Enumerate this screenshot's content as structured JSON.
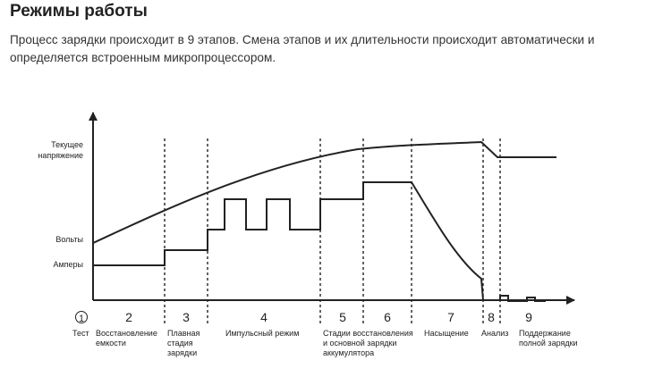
{
  "header": {
    "title": "Режимы работы",
    "description": "Процесс зарядки происходит в 9 этапов. Смена этапов и их длительности происходит автоматически и определяется встроенным микропроцессором."
  },
  "diagram": {
    "y_labels": {
      "voltage_current": [
        "Текущее",
        "напряжение"
      ],
      "volts": "Вольты",
      "amps": "Амперы"
    },
    "stages": [
      {
        "num": "1",
        "label": [
          "Тест"
        ]
      },
      {
        "num": "2",
        "label": [
          "Восстановление",
          "емкости"
        ]
      },
      {
        "num": "3",
        "label": [
          "Плавная",
          "стадия",
          "зарядки"
        ]
      },
      {
        "num": "4",
        "label": [
          "Импульсный режим"
        ]
      },
      {
        "num": "5",
        "label": [
          "Стадии восстановления",
          "и основной зарядки",
          "аккумулятора"
        ]
      },
      {
        "num": "6",
        "label": []
      },
      {
        "num": "7",
        "label": [
          "Насыщение"
        ]
      },
      {
        "num": "8",
        "label": [
          "Анализ"
        ]
      },
      {
        "num": "9",
        "label": [
          "Поддержание",
          "полной зарядки"
        ]
      }
    ]
  }
}
